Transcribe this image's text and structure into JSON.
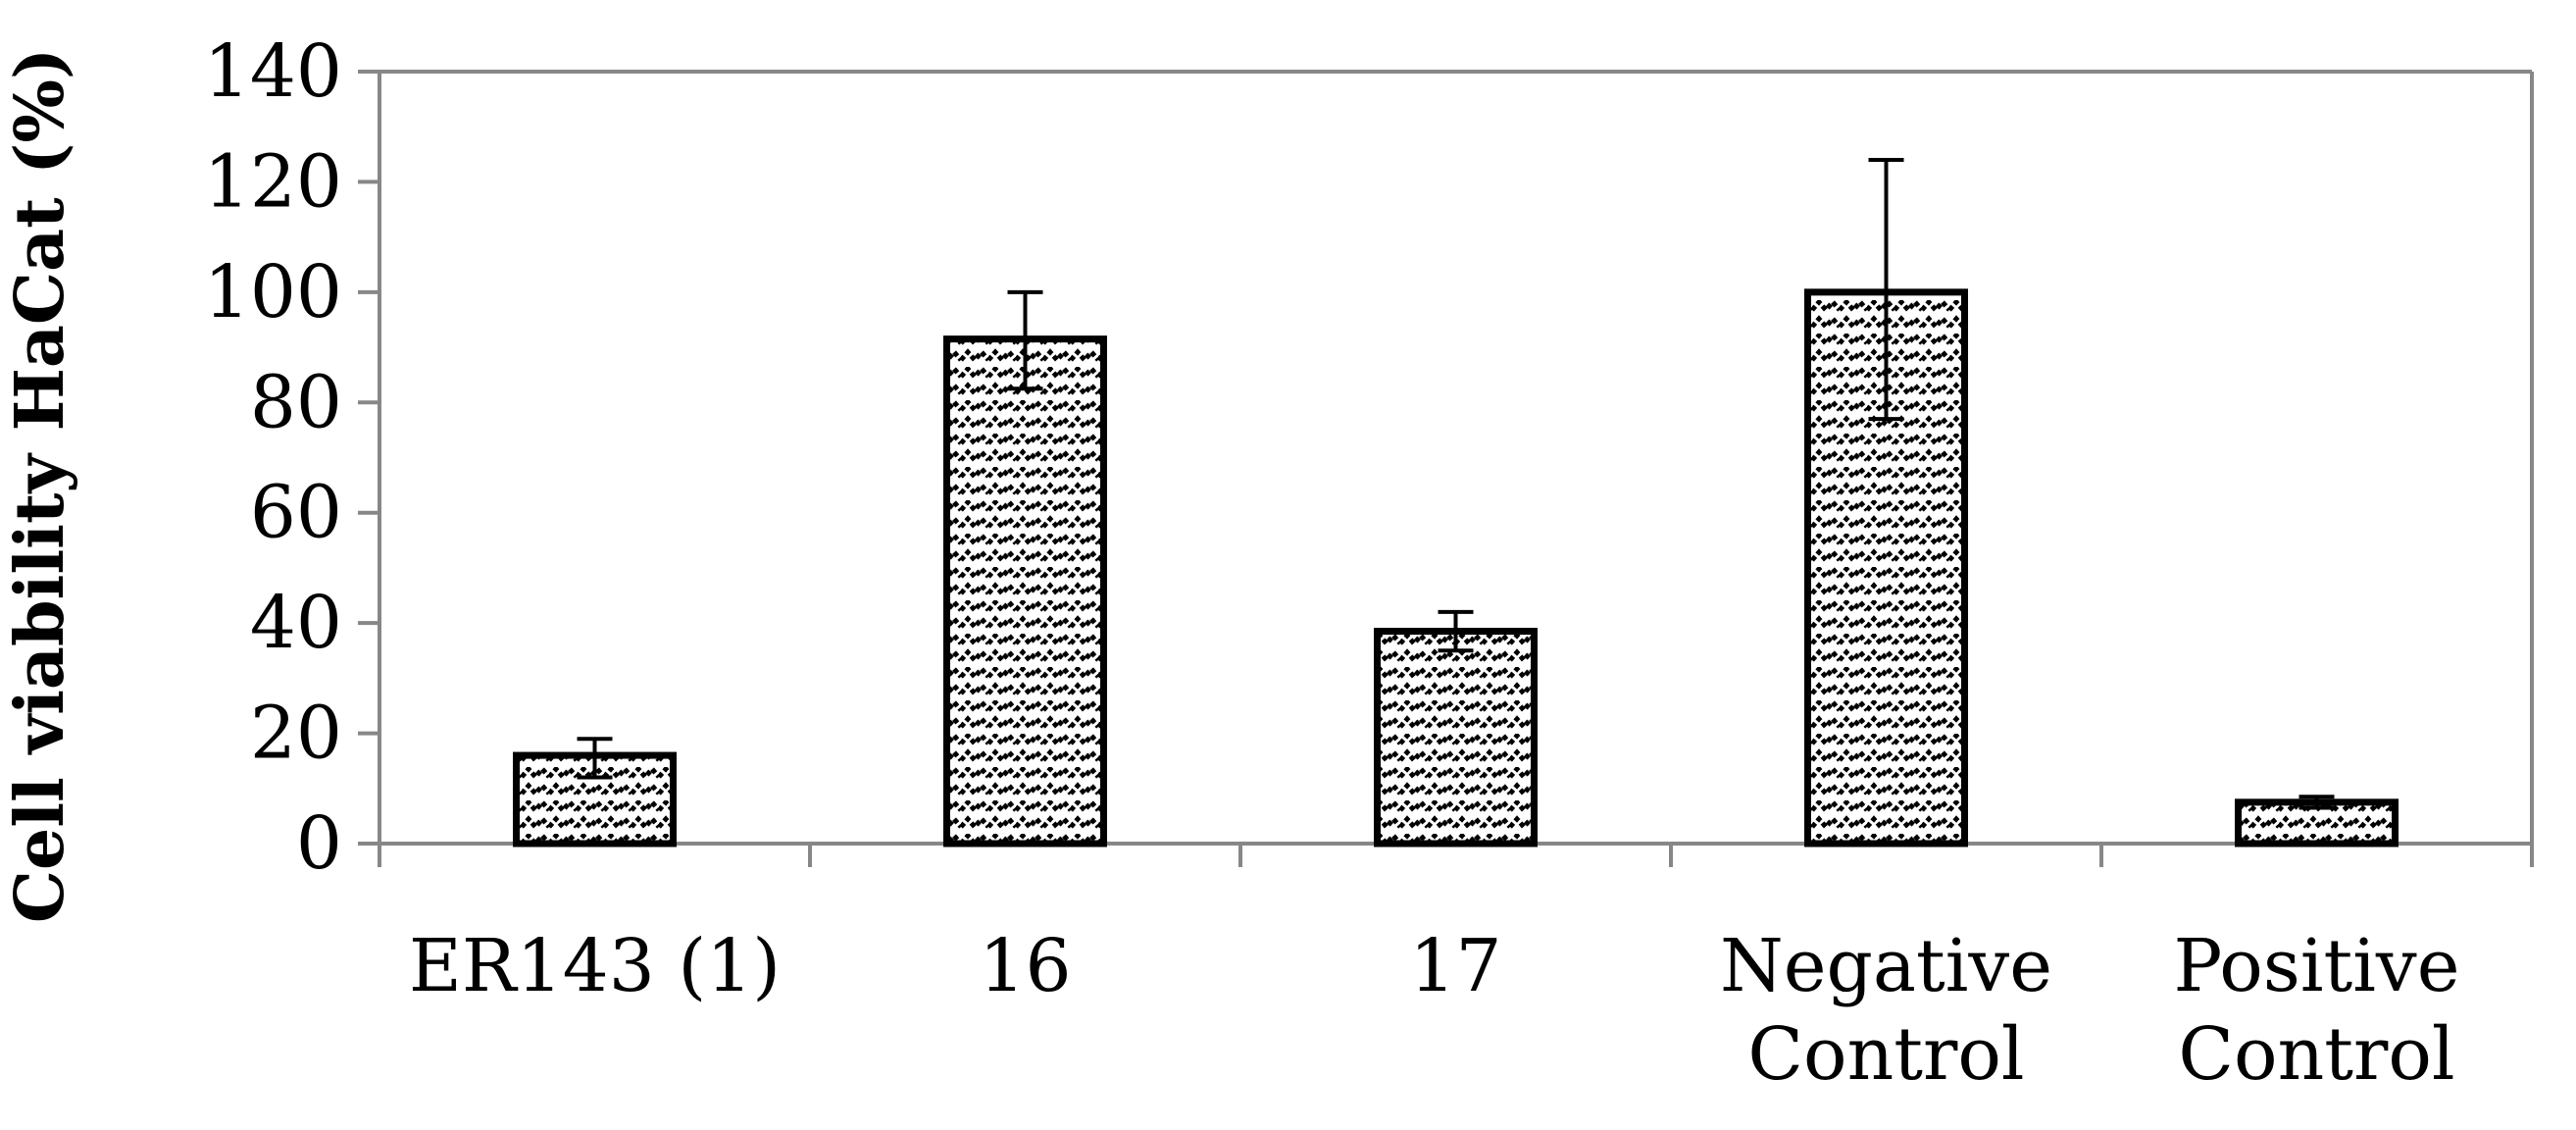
{
  "chart_data": {
    "type": "bar",
    "categories": [
      [
        "ER143 (1)"
      ],
      [
        "16"
      ],
      [
        "17"
      ],
      [
        "Negative",
        "Control"
      ],
      [
        "Positive",
        "Control"
      ]
    ],
    "values": [
      16,
      91.5,
      38.5,
      100,
      7.5
    ],
    "error_low": [
      4,
      9,
      3.5,
      23,
      1
    ],
    "error_high": [
      3,
      8.5,
      3.5,
      24,
      1
    ],
    "title": "",
    "xlabel": "",
    "ylabel": "Cell viability HaCat (%)",
    "ylim": [
      0,
      140
    ],
    "yticks": [
      0,
      20,
      40,
      60,
      80,
      100,
      120,
      140
    ],
    "grid": false,
    "legend": "none",
    "bar_pattern": "zigzag-hatch",
    "colors": {
      "axis": "#878787",
      "bar_stroke": "#000000",
      "bar_fill": "#ffffff",
      "pattern": "#000000"
    }
  }
}
